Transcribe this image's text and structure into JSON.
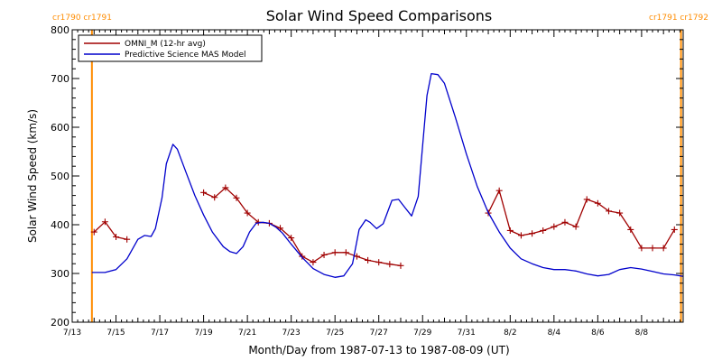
{
  "chart_data": {
    "type": "line",
    "title": "Solar Wind Speed Comparisons",
    "xlabel": "Month/Day from 1987-07-13 to 1987-08-09 (UT)",
    "ylabel": "Solar Wind Speed (km/s)",
    "x_unit": "days",
    "xlim": [
      0,
      27.9
    ],
    "ylim": [
      200,
      800
    ],
    "yticks": [
      200,
      300,
      400,
      500,
      600,
      700,
      800
    ],
    "xticks": [
      {
        "x": 0,
        "label": "7/13"
      },
      {
        "x": 2,
        "label": "7/15"
      },
      {
        "x": 4,
        "label": "7/17"
      },
      {
        "x": 6,
        "label": "7/19"
      },
      {
        "x": 8,
        "label": "7/21"
      },
      {
        "x": 10,
        "label": "7/23"
      },
      {
        "x": 12,
        "label": "7/25"
      },
      {
        "x": 14,
        "label": "7/27"
      },
      {
        "x": 16,
        "label": "7/29"
      },
      {
        "x": 18,
        "label": "7/31"
      },
      {
        "x": 20,
        "label": "8/2"
      },
      {
        "x": 22,
        "label": "8/4"
      },
      {
        "x": 24,
        "label": "8/6"
      },
      {
        "x": 26,
        "label": "8/8"
      }
    ],
    "carrington": [
      {
        "x": 0.9,
        "labels": [
          "cr1790",
          "cr1791"
        ],
        "side": "left"
      },
      {
        "x": 27.8,
        "labels": [
          "cr1791",
          "cr1792"
        ],
        "side": "right"
      }
    ],
    "legend": {
      "position": "top-left"
    },
    "series": [
      {
        "name": "OMNI_M (12-hr avg)",
        "color": "#a00000",
        "marker": "plus",
        "segments": [
          [
            [
              1.0,
              385
            ],
            [
              1.5,
              406
            ],
            [
              2.0,
              375
            ],
            [
              2.5,
              370
            ]
          ],
          [
            [
              6.0,
              466
            ],
            [
              6.5,
              456
            ],
            [
              7.0,
              476
            ],
            [
              7.5,
              455
            ],
            [
              8.0,
              424
            ],
            [
              8.5,
              405
            ],
            [
              9.0,
              403
            ],
            [
              9.5,
              393
            ],
            [
              10.0,
              373
            ],
            [
              10.5,
              335
            ],
            [
              11.0,
              323
            ],
            [
              11.5,
              338
            ],
            [
              12.0,
              343
            ],
            [
              12.5,
              343
            ],
            [
              13.0,
              335
            ],
            [
              13.5,
              327
            ],
            [
              14.0,
              323
            ],
            [
              14.5,
              319
            ],
            [
              15.0,
              316
            ]
          ],
          [
            [
              19.0,
              424
            ],
            [
              19.5,
              470
            ],
            [
              20.0,
              388
            ],
            [
              20.5,
              378
            ],
            [
              21.0,
              382
            ],
            [
              21.5,
              388
            ],
            [
              22.0,
              396
            ],
            [
              22.5,
              405
            ],
            [
              23.0,
              396
            ],
            [
              23.5,
              452
            ],
            [
              24.0,
              444
            ],
            [
              24.5,
              428
            ],
            [
              25.0,
              424
            ],
            [
              25.5,
              390
            ],
            [
              26.0,
              352
            ],
            [
              26.5,
              352
            ],
            [
              27.0,
              352
            ],
            [
              27.5,
              390
            ]
          ]
        ]
      },
      {
        "name": "Predictive Science MAS Model",
        "color": "#0000cc",
        "marker": "none",
        "segments": [
          [
            [
              0.9,
              302
            ],
            [
              1.5,
              302
            ],
            [
              2.0,
              308
            ],
            [
              2.5,
              330
            ],
            [
              3.0,
              370
            ],
            [
              3.3,
              378
            ],
            [
              3.6,
              376
            ],
            [
              3.8,
              392
            ],
            [
              4.1,
              455
            ],
            [
              4.3,
              525
            ],
            [
              4.6,
              565
            ],
            [
              4.8,
              555
            ],
            [
              5.2,
              507
            ],
            [
              5.6,
              460
            ],
            [
              6.0,
              420
            ],
            [
              6.4,
              385
            ],
            [
              6.9,
              355
            ],
            [
              7.2,
              345
            ],
            [
              7.5,
              341
            ],
            [
              7.8,
              355
            ],
            [
              8.1,
              385
            ],
            [
              8.4,
              403
            ],
            [
              8.7,
              405
            ],
            [
              9.0,
              403
            ],
            [
              9.3,
              395
            ],
            [
              9.6,
              383
            ],
            [
              10.0,
              360
            ],
            [
              10.5,
              333
            ],
            [
              11.0,
              310
            ],
            [
              11.5,
              298
            ],
            [
              12.0,
              292
            ],
            [
              12.4,
              295
            ],
            [
              12.8,
              320
            ],
            [
              13.1,
              390
            ],
            [
              13.4,
              410
            ],
            [
              13.6,
              405
            ],
            [
              13.9,
              392
            ],
            [
              14.2,
              402
            ],
            [
              14.6,
              450
            ],
            [
              14.9,
              452
            ],
            [
              15.2,
              435
            ],
            [
              15.5,
              418
            ],
            [
              15.8,
              458
            ],
            [
              16.2,
              665
            ],
            [
              16.4,
              710
            ],
            [
              16.7,
              708
            ],
            [
              17.0,
              690
            ],
            [
              17.5,
              620
            ],
            [
              18.0,
              545
            ],
            [
              18.5,
              478
            ],
            [
              19.0,
              425
            ],
            [
              19.5,
              385
            ],
            [
              20.0,
              352
            ],
            [
              20.5,
              330
            ],
            [
              21.0,
              320
            ],
            [
              21.5,
              312
            ],
            [
              22.0,
              308
            ],
            [
              22.5,
              308
            ],
            [
              23.0,
              305
            ],
            [
              23.5,
              299
            ],
            [
              24.0,
              295
            ],
            [
              24.5,
              298
            ],
            [
              25.0,
              308
            ],
            [
              25.5,
              312
            ],
            [
              26.0,
              309
            ],
            [
              26.5,
              304
            ],
            [
              27.0,
              299
            ],
            [
              27.5,
              297
            ],
            [
              27.9,
              294
            ]
          ]
        ]
      }
    ]
  }
}
